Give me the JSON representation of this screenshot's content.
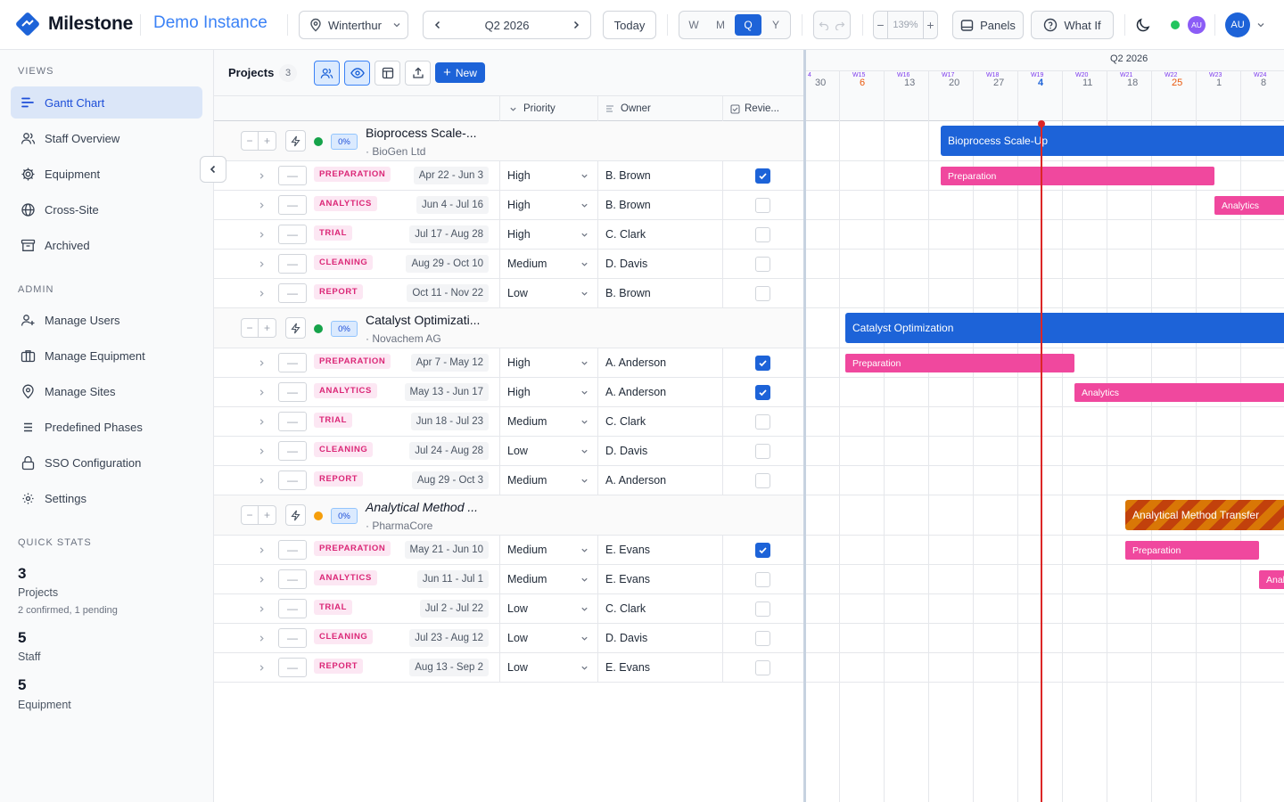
{
  "app": {
    "name": "Milestone",
    "instance": "Demo Instance"
  },
  "toolbar": {
    "site": "Winterthur",
    "period": "Q2 2026",
    "today": "Today",
    "modes": [
      "W",
      "M",
      "Q",
      "Y"
    ],
    "active_mode": "Q",
    "zoom": "139%",
    "panels": "Panels",
    "what_if": "What If",
    "user_initials": "AU"
  },
  "sidebar": {
    "views_title": "VIEWS",
    "views": [
      "Gantt Chart",
      "Staff Overview",
      "Equipment",
      "Cross-Site",
      "Archived"
    ],
    "admin_title": "ADMIN",
    "admin": [
      "Manage Users",
      "Manage Equipment",
      "Manage Sites",
      "Predefined Phases",
      "SSO Configuration",
      "Settings"
    ],
    "stats_title": "QUICK STATS",
    "stats": [
      {
        "value": "3",
        "label": "Projects",
        "sub": "2 confirmed, 1 pending"
      },
      {
        "value": "5",
        "label": "Staff",
        "sub": ""
      },
      {
        "value": "5",
        "label": "Equipment",
        "sub": ""
      }
    ]
  },
  "table": {
    "title": "Projects",
    "count": "3",
    "new_button": "New",
    "columns": {
      "priority": "Priority",
      "owner": "Owner",
      "review": "Revie..."
    }
  },
  "projects": [
    {
      "name": "Bioprocess Scale-...",
      "client": "· BioGen Ltd",
      "progress": "0%",
      "status_color": "#16a34a",
      "phases": [
        {
          "tag": "PREPARATION",
          "dates": "Apr 22 - Jun 3",
          "priority": "High",
          "owner": "B. Brown",
          "reviewed": true
        },
        {
          "tag": "ANALYTICS",
          "dates": "Jun 4 - Jul 16",
          "priority": "High",
          "owner": "B. Brown",
          "reviewed": false
        },
        {
          "tag": "TRIAL",
          "dates": "Jul 17 - Aug 28",
          "priority": "High",
          "owner": "C. Clark",
          "reviewed": false
        },
        {
          "tag": "CLEANING",
          "dates": "Aug 29 - Oct 10",
          "priority": "Medium",
          "owner": "D. Davis",
          "reviewed": false
        },
        {
          "tag": "REPORT",
          "dates": "Oct 11 - Nov 22",
          "priority": "Low",
          "owner": "B. Brown",
          "reviewed": false
        }
      ]
    },
    {
      "name": "Catalyst Optimizati...",
      "client": "· Novachem AG",
      "progress": "0%",
      "status_color": "#16a34a",
      "phases": [
        {
          "tag": "PREPARATION",
          "dates": "Apr 7 - May 12",
          "priority": "High",
          "owner": "A. Anderson",
          "reviewed": true
        },
        {
          "tag": "ANALYTICS",
          "dates": "May 13 - Jun 17",
          "priority": "High",
          "owner": "A. Anderson",
          "reviewed": true
        },
        {
          "tag": "TRIAL",
          "dates": "Jun 18 - Jul 23",
          "priority": "Medium",
          "owner": "C. Clark",
          "reviewed": false
        },
        {
          "tag": "CLEANING",
          "dates": "Jul 24 - Aug 28",
          "priority": "Low",
          "owner": "D. Davis",
          "reviewed": false
        },
        {
          "tag": "REPORT",
          "dates": "Aug 29 - Oct 3",
          "priority": "Medium",
          "owner": "A. Anderson",
          "reviewed": false
        }
      ]
    },
    {
      "name": "Analytical Method ...",
      "client": "· PharmaCore",
      "progress": "0%",
      "status_color": "#f59e0b",
      "pending": true,
      "phases": [
        {
          "tag": "PREPARATION",
          "dates": "May 21 - Jun 10",
          "priority": "Medium",
          "owner": "E. Evans",
          "reviewed": true
        },
        {
          "tag": "ANALYTICS",
          "dates": "Jun 11 - Jul 1",
          "priority": "Medium",
          "owner": "E. Evans",
          "reviewed": false
        },
        {
          "tag": "TRIAL",
          "dates": "Jul 2 - Jul 22",
          "priority": "Low",
          "owner": "C. Clark",
          "reviewed": false
        },
        {
          "tag": "CLEANING",
          "dates": "Jul 23 - Aug 12",
          "priority": "Low",
          "owner": "D. Davis",
          "reviewed": false
        },
        {
          "tag": "REPORT",
          "dates": "Aug 13 - Sep 2",
          "priority": "Low",
          "owner": "E. Evans",
          "reviewed": false
        }
      ]
    }
  ],
  "gantt": {
    "period_label": "Q2 2026",
    "weeks": [
      "4",
      "W15",
      "W16",
      "W17",
      "W18",
      "W19",
      "W20",
      "W21",
      "W22",
      "W23",
      "W24"
    ],
    "days": [
      "30",
      "6",
      "13",
      "20",
      "27",
      "4",
      "11",
      "18",
      "25",
      "1",
      "8"
    ],
    "highlight_days": [
      "6",
      "25"
    ],
    "today_day": "4",
    "project_bars": [
      "Bioprocess Scale-Up",
      "Catalyst Optimization",
      "Analytical Method Transfer"
    ],
    "phase_labels": [
      "Preparation",
      "Analytics",
      "Preparation",
      "Analytics",
      "Preparation",
      "Anal"
    ]
  },
  "colors": {
    "accent": "#1d63d8",
    "phase": "#f0489e",
    "today_line": "#dc2626",
    "pending": "#d97706"
  }
}
